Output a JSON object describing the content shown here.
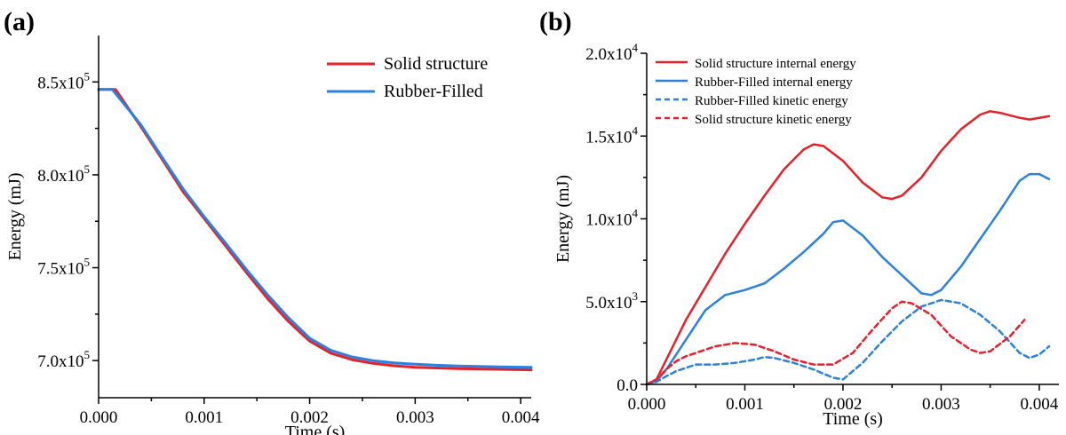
{
  "figure": {
    "panel_a_label": "(a)",
    "panel_b_label": "(b)"
  },
  "chart_data": [
    {
      "type": "line",
      "panel": "(a)",
      "xlabel": "Time (s)",
      "ylabel": "Energy (mJ)",
      "xlim": [
        0,
        0.0041
      ],
      "ylim": [
        680000,
        875000
      ],
      "xticks": [
        0.0,
        0.001,
        0.002,
        0.003,
        0.004
      ],
      "xtick_labels": [
        "0.000",
        "0.001",
        "0.002",
        "0.003",
        "0.004"
      ],
      "yticks": [
        700000,
        750000,
        800000,
        850000
      ],
      "ytick_labels": [
        {
          "mantissa": "7.0x10",
          "exp": "5"
        },
        {
          "mantissa": "7.5x10",
          "exp": "5"
        },
        {
          "mantissa": "8.0x10",
          "exp": "5"
        },
        {
          "mantissa": "8.5x10",
          "exp": "5"
        }
      ],
      "legend_position": "top-right",
      "series": [
        {
          "name": "Solid structure",
          "color": "#e8202a",
          "dash": "solid",
          "x": [
            0,
            0.00016,
            0.0004,
            0.0006,
            0.0008,
            0.001,
            0.0012,
            0.0014,
            0.0016,
            0.0018,
            0.002,
            0.0022,
            0.0024,
            0.0026,
            0.0028,
            0.003,
            0.0032,
            0.0034,
            0.0036,
            0.0038,
            0.0041
          ],
          "y": [
            846000,
            846000,
            826000,
            808500,
            791000,
            776500,
            762000,
            747500,
            733500,
            721000,
            710500,
            704000,
            700500,
            698500,
            697200,
            696400,
            696000,
            695700,
            695500,
            695300,
            695000
          ]
        },
        {
          "name": "Rubber-Filled",
          "color": "#2a82e0",
          "dash": "solid",
          "x": [
            0,
            0.00013,
            0.0004,
            0.0006,
            0.0008,
            0.001,
            0.0012,
            0.0014,
            0.0016,
            0.0018,
            0.002,
            0.0022,
            0.0024,
            0.0026,
            0.0028,
            0.003,
            0.0032,
            0.0034,
            0.0036,
            0.0038,
            0.0041
          ],
          "y": [
            846000,
            846000,
            827000,
            809500,
            792500,
            777500,
            763500,
            749000,
            735500,
            723000,
            712000,
            705500,
            702000,
            700000,
            698800,
            698000,
            697500,
            697100,
            696800,
            696600,
            696400
          ]
        }
      ]
    },
    {
      "type": "line",
      "panel": "(b)",
      "xlabel": "Time (s)",
      "ylabel": "Energy (mJ)",
      "xlim": [
        0,
        0.0042
      ],
      "ylim": [
        0,
        20000
      ],
      "xticks": [
        0.0,
        0.001,
        0.002,
        0.003,
        0.004
      ],
      "xtick_labels": [
        "0.000",
        "0.001",
        "0.002",
        "0.003",
        "0.004"
      ],
      "yticks": [
        0,
        5000,
        10000,
        15000,
        20000
      ],
      "ytick_labels": [
        {
          "mantissa": "0.0",
          "exp": ""
        },
        {
          "mantissa": "5.0x10",
          "exp": "3"
        },
        {
          "mantissa": "1.0x10",
          "exp": "4"
        },
        {
          "mantissa": "1.5x10",
          "exp": "4"
        },
        {
          "mantissa": "2.0x10",
          "exp": "4"
        }
      ],
      "legend_position": "top-left",
      "series": [
        {
          "name": "Solid structure internal energy",
          "color": "#e8202a",
          "dash": "solid",
          "x": [
            0,
            0.0001,
            0.0002,
            0.0004,
            0.0006,
            0.0008,
            0.001,
            0.0012,
            0.0014,
            0.0016,
            0.0017,
            0.0018,
            0.002,
            0.0022,
            0.0024,
            0.0025,
            0.0026,
            0.0028,
            0.003,
            0.0032,
            0.0034,
            0.0035,
            0.0036,
            0.0038,
            0.0039,
            0.0041
          ],
          "y": [
            0,
            300,
            1500,
            3900,
            5900,
            7900,
            9700,
            11400,
            13000,
            14200,
            14500,
            14400,
            13500,
            12200,
            11300,
            11200,
            11400,
            12500,
            14100,
            15400,
            16300,
            16500,
            16400,
            16100,
            16000,
            16200
          ]
        },
        {
          "name": "Rubber-Filled internal energy",
          "color": "#2a82e0",
          "dash": "solid",
          "x": [
            0,
            0.0001,
            0.0002,
            0.0004,
            0.0006,
            0.0008,
            0.001,
            0.0012,
            0.0014,
            0.0016,
            0.0018,
            0.0019,
            0.002,
            0.0022,
            0.0024,
            0.0026,
            0.0028,
            0.0029,
            0.003,
            0.0032,
            0.0034,
            0.0036,
            0.0038,
            0.0039,
            0.004,
            0.0041
          ],
          "y": [
            0,
            200,
            900,
            2700,
            4500,
            5400,
            5700,
            6100,
            7000,
            8000,
            9100,
            9800,
            9900,
            9000,
            7700,
            6600,
            5500,
            5400,
            5700,
            7100,
            8800,
            10500,
            12300,
            12700,
            12700,
            12400
          ]
        },
        {
          "name": "Rubber-Filled kinetic energy",
          "color": "#2a82e0",
          "dash": "dashed",
          "x": [
            0,
            0.0001,
            0.0002,
            0.0003,
            0.0004,
            0.0005,
            0.0007,
            0.0009,
            0.0011,
            0.0012,
            0.0013,
            0.0015,
            0.0017,
            0.0019,
            0.002,
            0.0022,
            0.0024,
            0.0026,
            0.0028,
            0.003,
            0.0032,
            0.0034,
            0.0036,
            0.0038,
            0.0039,
            0.004,
            0.0041
          ],
          "y": [
            0,
            150,
            500,
            800,
            1000,
            1200,
            1200,
            1300,
            1500,
            1650,
            1600,
            1300,
            900,
            400,
            300,
            1300,
            2600,
            3800,
            4700,
            5100,
            4900,
            4200,
            3200,
            1900,
            1600,
            1800,
            2300
          ]
        },
        {
          "name": "Solid structure kinetic energy",
          "color": "#e8202a",
          "dash": "dashed",
          "x": [
            0,
            0.0001,
            0.0002,
            0.0003,
            0.0004,
            0.0005,
            0.0007,
            0.0009,
            0.0011,
            0.0013,
            0.0015,
            0.0017,
            0.0019,
            0.0021,
            0.0023,
            0.0025,
            0.0026,
            0.0027,
            0.0029,
            0.0031,
            0.0033,
            0.0034,
            0.0035,
            0.0037,
            0.00385
          ],
          "y": [
            0,
            300,
            900,
            1400,
            1700,
            1900,
            2300,
            2500,
            2400,
            2000,
            1500,
            1200,
            1200,
            1900,
            3300,
            4600,
            5000,
            4900,
            4200,
            2900,
            2100,
            1900,
            2000,
            2900,
            3900
          ]
        }
      ]
    }
  ]
}
